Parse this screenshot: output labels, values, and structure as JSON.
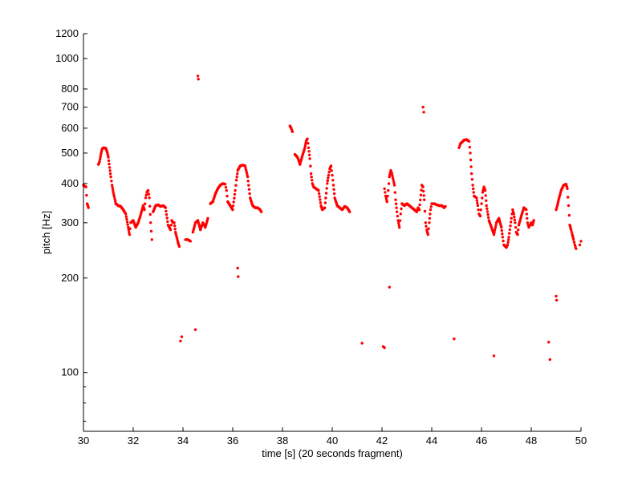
{
  "chart_data": {
    "type": "scatter",
    "xlabel": "time [s] (20 seconds fragment)",
    "ylabel": "pitch [Hz]",
    "xlim": [
      30,
      50
    ],
    "ylim": [
      65,
      1200
    ],
    "yscale": "log",
    "grid": false,
    "marker_color": "#ff0000",
    "x_ticks": [
      "30",
      "32",
      "34",
      "36",
      "38",
      "40",
      "42",
      "44",
      "46",
      "48",
      "50"
    ],
    "y_ticks": [
      "100",
      "200",
      "300",
      "400",
      "500",
      "600",
      "700",
      "800",
      "1000",
      "1200"
    ],
    "y_tick_values": [
      100,
      200,
      300,
      400,
      500,
      600,
      700,
      800,
      1000,
      1200
    ],
    "y_minor_values": [
      70,
      80,
      90
    ],
    "trajectories": [
      {
        "points": [
          [
            30.0,
            395
          ],
          [
            30.1,
            390
          ],
          [
            30.15,
            345
          ],
          [
            30.2,
            335
          ]
        ]
      },
      {
        "points": [
          [
            30.6,
            460
          ],
          [
            30.65,
            470
          ],
          [
            30.7,
            495
          ],
          [
            30.75,
            515
          ],
          [
            30.8,
            520
          ],
          [
            30.9,
            518
          ],
          [
            30.95,
            505
          ],
          [
            31.0,
            485
          ],
          [
            31.05,
            450
          ],
          [
            31.1,
            420
          ],
          [
            31.15,
            395
          ],
          [
            31.2,
            375
          ],
          [
            31.3,
            345
          ],
          [
            31.4,
            340
          ],
          [
            31.5,
            338
          ],
          [
            31.6,
            330
          ],
          [
            31.7,
            320
          ],
          [
            31.8,
            290
          ],
          [
            31.85,
            275
          ],
          [
            31.9,
            300
          ],
          [
            32.0,
            305
          ],
          [
            32.1,
            290
          ],
          [
            32.2,
            300
          ],
          [
            32.3,
            318
          ],
          [
            32.4,
            340
          ],
          [
            32.45,
            330
          ],
          [
            32.5,
            360
          ],
          [
            32.55,
            375
          ],
          [
            32.6,
            380
          ],
          [
            32.65,
            360
          ],
          [
            32.7,
            300
          ],
          [
            32.75,
            265
          ]
        ]
      },
      {
        "points": [
          [
            32.8,
            325
          ],
          [
            32.9,
            340
          ],
          [
            33.0,
            342
          ],
          [
            33.1,
            338
          ],
          [
            33.2,
            340
          ],
          [
            33.3,
            335
          ],
          [
            33.4,
            295
          ],
          [
            33.5,
            285
          ],
          [
            33.55,
            305
          ],
          [
            33.6,
            300
          ],
          [
            33.65,
            300
          ],
          [
            33.7,
            280
          ],
          [
            33.8,
            260
          ],
          [
            33.85,
            252
          ]
        ]
      },
      {
        "points": [
          [
            34.1,
            265
          ],
          [
            34.2,
            265
          ],
          [
            34.3,
            262
          ]
        ]
      },
      {
        "points": [
          [
            34.4,
            280
          ],
          [
            34.5,
            300
          ],
          [
            34.6,
            305
          ],
          [
            34.7,
            285
          ],
          [
            34.8,
            300
          ],
          [
            34.9,
            290
          ],
          [
            35.0,
            310
          ]
        ]
      },
      {
        "points": [
          [
            35.1,
            345
          ],
          [
            35.2,
            350
          ],
          [
            35.3,
            370
          ],
          [
            35.4,
            385
          ],
          [
            35.5,
            395
          ],
          [
            35.6,
            400
          ],
          [
            35.7,
            398
          ],
          [
            35.75,
            380
          ],
          [
            35.8,
            350
          ],
          [
            35.9,
            340
          ],
          [
            36.0,
            330
          ],
          [
            36.1,
            380
          ],
          [
            36.15,
            410
          ],
          [
            36.2,
            440
          ],
          [
            36.3,
            455
          ],
          [
            36.4,
            458
          ],
          [
            36.5,
            455
          ],
          [
            36.6,
            420
          ],
          [
            36.7,
            360
          ],
          [
            36.8,
            340
          ],
          [
            36.9,
            335
          ],
          [
            37.0,
            335
          ],
          [
            37.1,
            330
          ],
          [
            37.15,
            325
          ]
        ]
      },
      {
        "points": [
          [
            38.3,
            610
          ],
          [
            38.35,
            600
          ],
          [
            38.4,
            585
          ]
        ]
      },
      {
        "points": [
          [
            38.5,
            495
          ],
          [
            38.6,
            485
          ],
          [
            38.65,
            475
          ],
          [
            38.7,
            460
          ],
          [
            38.8,
            490
          ],
          [
            38.9,
            520
          ],
          [
            38.95,
            545
          ],
          [
            39.0,
            555
          ],
          [
            39.05,
            520
          ],
          [
            39.1,
            480
          ],
          [
            39.15,
            430
          ],
          [
            39.2,
            400
          ],
          [
            39.25,
            390
          ],
          [
            39.35,
            385
          ],
          [
            39.45,
            380
          ],
          [
            39.55,
            340
          ],
          [
            39.6,
            330
          ],
          [
            39.7,
            335
          ],
          [
            39.8,
            400
          ],
          [
            39.85,
            425
          ],
          [
            39.9,
            445
          ],
          [
            39.95,
            455
          ],
          [
            40.0,
            425
          ],
          [
            40.05,
            395
          ],
          [
            40.1,
            360
          ],
          [
            40.2,
            340
          ],
          [
            40.3,
            335
          ],
          [
            40.4,
            330
          ],
          [
            40.5,
            338
          ],
          [
            40.6,
            335
          ],
          [
            40.7,
            325
          ]
        ]
      },
      {
        "points": [
          [
            42.1,
            385
          ],
          [
            42.15,
            365
          ],
          [
            42.2,
            350
          ],
          [
            42.25,
            380
          ],
          [
            42.3,
            420
          ],
          [
            42.35,
            440
          ],
          [
            42.4,
            430
          ],
          [
            42.5,
            395
          ],
          [
            42.55,
            355
          ],
          [
            42.6,
            325
          ],
          [
            42.65,
            305
          ],
          [
            42.7,
            290
          ],
          [
            42.75,
            320
          ],
          [
            42.8,
            345
          ],
          [
            42.9,
            340
          ],
          [
            43.0,
            345
          ],
          [
            43.1,
            340
          ],
          [
            43.2,
            335
          ],
          [
            43.3,
            330
          ],
          [
            43.4,
            325
          ],
          [
            43.45,
            335
          ],
          [
            43.5,
            330
          ],
          [
            43.6,
            395
          ],
          [
            43.65,
            390
          ],
          [
            43.7,
            355
          ],
          [
            43.75,
            300
          ],
          [
            43.8,
            285
          ],
          [
            43.85,
            275
          ],
          [
            43.9,
            300
          ],
          [
            43.95,
            330
          ],
          [
            44.0,
            345
          ],
          [
            44.1,
            345
          ],
          [
            44.2,
            342
          ],
          [
            44.3,
            340
          ],
          [
            44.4,
            340
          ],
          [
            44.5,
            335
          ],
          [
            44.55,
            338
          ]
        ]
      },
      {
        "points": [
          [
            45.1,
            520
          ],
          [
            45.15,
            535
          ],
          [
            45.2,
            540
          ],
          [
            45.3,
            550
          ],
          [
            45.4,
            552
          ],
          [
            45.5,
            545
          ],
          [
            45.55,
            500
          ],
          [
            45.6,
            430
          ],
          [
            45.65,
            395
          ],
          [
            45.7,
            365
          ],
          [
            45.8,
            360
          ],
          [
            45.85,
            340
          ],
          [
            45.9,
            320
          ],
          [
            45.95,
            315
          ],
          [
            46.0,
            345
          ],
          [
            46.05,
            375
          ],
          [
            46.1,
            390
          ],
          [
            46.15,
            380
          ],
          [
            46.2,
            340
          ],
          [
            46.3,
            305
          ],
          [
            46.4,
            290
          ],
          [
            46.5,
            275
          ],
          [
            46.6,
            300
          ],
          [
            46.7,
            310
          ],
          [
            46.8,
            290
          ],
          [
            46.85,
            270
          ],
          [
            46.9,
            255
          ],
          [
            47.0,
            250
          ],
          [
            47.05,
            255
          ],
          [
            47.1,
            270
          ],
          [
            47.2,
            310
          ],
          [
            47.25,
            330
          ],
          [
            47.3,
            320
          ],
          [
            47.35,
            300
          ],
          [
            47.4,
            280
          ],
          [
            47.45,
            275
          ],
          [
            47.5,
            295
          ],
          [
            47.6,
            315
          ],
          [
            47.7,
            335
          ],
          [
            47.8,
            330
          ],
          [
            47.85,
            300
          ],
          [
            47.9,
            290
          ],
          [
            48.0,
            300
          ],
          [
            48.05,
            295
          ],
          [
            48.1,
            305
          ]
        ]
      },
      {
        "points": [
          [
            49.0,
            330
          ],
          [
            49.05,
            340
          ],
          [
            49.1,
            355
          ],
          [
            49.2,
            380
          ],
          [
            49.3,
            395
          ],
          [
            49.4,
            398
          ],
          [
            49.45,
            385
          ],
          [
            49.5,
            340
          ],
          [
            49.55,
            295
          ],
          [
            49.6,
            285
          ],
          [
            49.65,
            275
          ],
          [
            49.7,
            265
          ],
          [
            49.75,
            255
          ],
          [
            49.8,
            248
          ]
        ]
      }
    ],
    "scatter_points": [
      [
        34.6,
        880
      ],
      [
        34.62,
        860
      ],
      [
        33.9,
        126
      ],
      [
        33.95,
        130
      ],
      [
        34.5,
        137
      ],
      [
        36.2,
        215
      ],
      [
        36.22,
        202
      ],
      [
        41.2,
        124
      ],
      [
        42.05,
        121
      ],
      [
        42.1,
        120
      ],
      [
        42.3,
        187
      ],
      [
        43.65,
        700
      ],
      [
        43.68,
        675
      ],
      [
        44.9,
        128
      ],
      [
        46.5,
        113
      ],
      [
        48.7,
        125
      ],
      [
        48.75,
        110
      ],
      [
        49.0,
        175
      ],
      [
        49.02,
        170
      ],
      [
        50.0,
        262
      ],
      [
        49.95,
        255
      ]
    ]
  }
}
